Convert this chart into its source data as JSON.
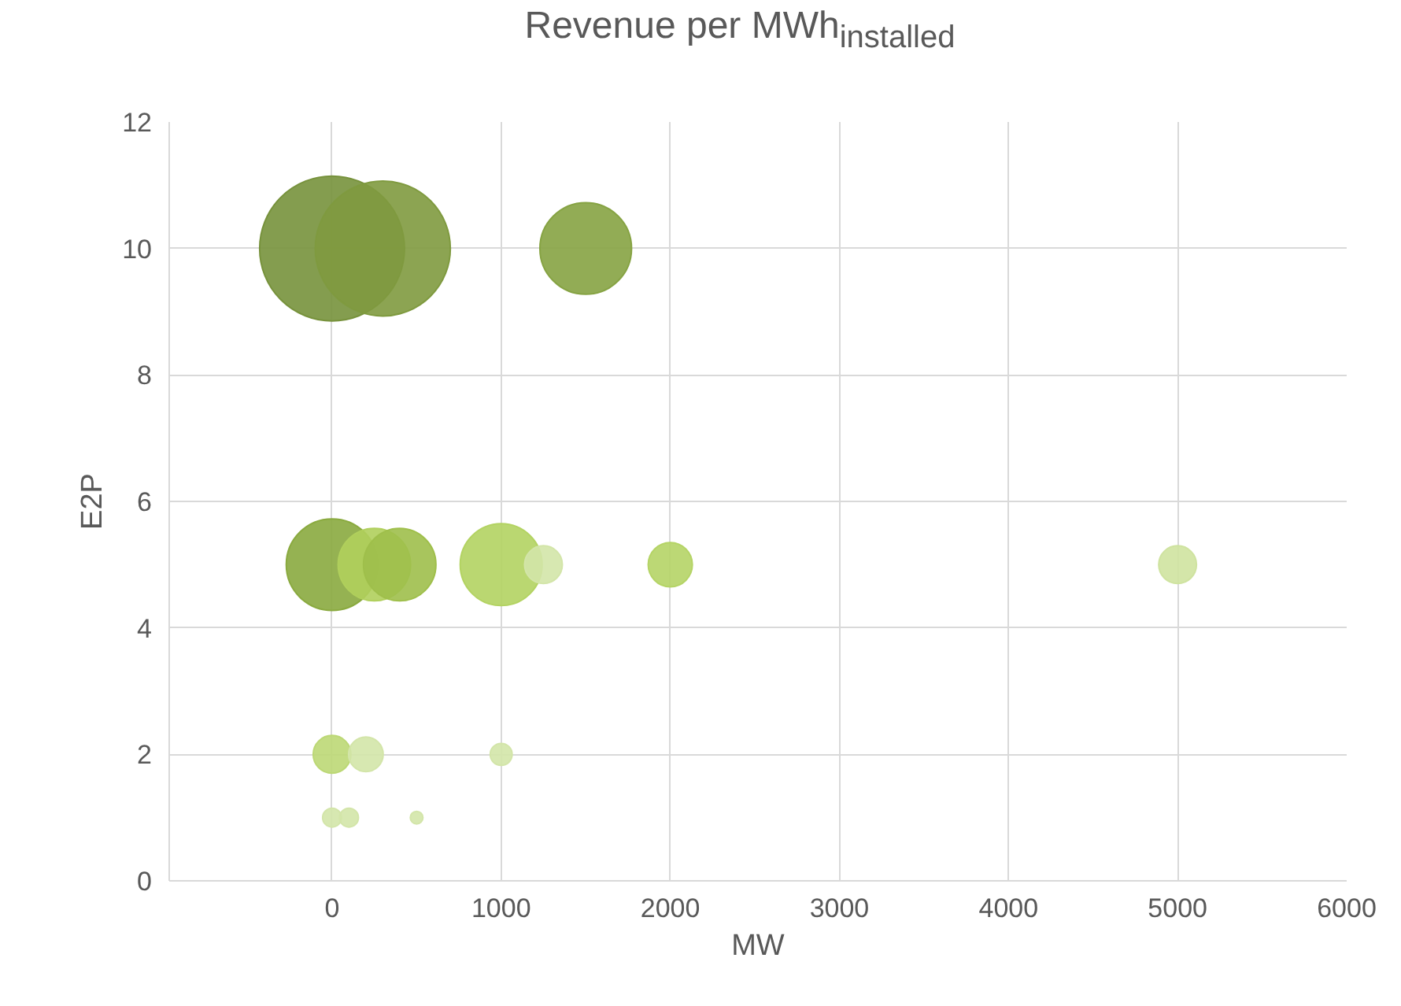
{
  "chart_data": {
    "type": "bubble",
    "title": "Revenue per MWh$_{installed}$",
    "xlabel": "MW",
    "ylabel": "E2P",
    "x": [
      0,
      300,
      1500,
      0,
      250,
      400,
      1000,
      1250,
      2000,
      5000,
      0,
      200,
      1000,
      0,
      100,
      500
    ],
    "values": [
      10,
      10,
      10,
      5,
      5,
      5,
      5,
      5,
      5,
      5,
      2,
      2,
      2,
      1,
      1,
      1
    ],
    "sizes": [
      1,
      0.87,
      0.4,
      0.4,
      0.25,
      0.25,
      0.32,
      0.068,
      0.093,
      0.068,
      0.068,
      0.057,
      0.023,
      0.017,
      0.017,
      0.0076
    ],
    "colors": [
      "#77923c",
      "#7f9a3f",
      "#86a343",
      "#8aaa3f",
      "#b0cf5c",
      "#9fbf4b",
      "#b3d362",
      "#d3e5a9",
      "#b5d466",
      "#cfe3a0",
      "#bcd875",
      "#d3e5a9",
      "#d3e5a9",
      "#d3e5a9",
      "#d3e5a9",
      "#d3e5a9"
    ],
    "xlim": [
      -963,
      6000
    ],
    "xticks": [
      0,
      1000,
      2000,
      3000,
      4000,
      5000,
      6000
    ],
    "ylim": [
      0,
      12
    ],
    "yticks": [
      0,
      2,
      4,
      6,
      8,
      10,
      12
    ],
    "grid": true
  }
}
